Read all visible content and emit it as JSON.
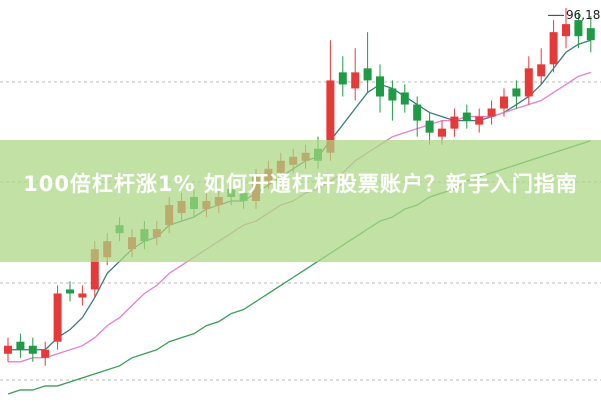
{
  "chart_data": {
    "type": "candlestick",
    "title": "100倍杠杆涨1% 如何开通杠杆股票账户？新手入门指南",
    "categories": [
      null,
      null,
      null,
      null,
      null,
      null,
      null,
      null,
      null,
      null,
      null,
      null,
      null,
      null,
      null,
      null,
      null,
      null,
      null,
      null,
      null,
      null,
      null,
      null,
      null,
      null,
      null,
      null,
      null,
      null,
      null,
      null,
      null,
      null,
      null,
      null,
      null,
      null,
      null,
      null,
      null,
      null,
      null,
      null,
      null,
      null,
      null,
      null
    ],
    "open": [
      12,
      15,
      14,
      11,
      15,
      28,
      26,
      28,
      36,
      44,
      38,
      43,
      41,
      44,
      47,
      51,
      48,
      49,
      53,
      52,
      50,
      55,
      57,
      59,
      60,
      63,
      62,
      82,
      78,
      83,
      81,
      78,
      77,
      74,
      70,
      66,
      68,
      72,
      69,
      71,
      73,
      78,
      76,
      81,
      84,
      91,
      95,
      93
    ],
    "high": [
      16,
      17,
      16,
      15,
      29,
      30,
      29,
      40,
      42,
      46,
      43,
      45,
      45,
      51,
      52,
      53,
      52,
      53,
      55,
      54,
      58,
      60,
      62,
      63,
      64,
      66,
      90,
      86,
      88,
      92,
      84,
      80,
      79,
      76,
      72,
      70,
      73,
      74,
      73,
      75,
      78,
      80,
      86,
      88,
      95,
      98,
      97,
      96
    ],
    "low": [
      10,
      11,
      10,
      9,
      13,
      25,
      24,
      26,
      34,
      40,
      36,
      38,
      39,
      42,
      45,
      46,
      46,
      47,
      49,
      48,
      48,
      53,
      55,
      57,
      58,
      58,
      60,
      76,
      75,
      77,
      72,
      70,
      72,
      66,
      64,
      64,
      66,
      68,
      67,
      69,
      71,
      73,
      74,
      79,
      82,
      88,
      88,
      87
    ],
    "close": [
      14,
      13,
      12,
      13,
      27,
      27,
      27,
      38,
      40,
      42,
      41,
      40,
      43,
      49,
      50,
      48,
      50,
      51,
      51,
      50,
      56,
      58,
      60,
      61,
      62,
      60,
      80,
      79,
      82,
      80,
      76,
      75,
      74,
      70,
      67,
      68,
      71,
      70,
      71,
      73,
      76,
      76,
      83,
      84,
      92,
      94,
      91,
      90
    ],
    "up_color": "#e63a3a",
    "down_color": "#1f9a45",
    "series": [
      {
        "color": "#3d7a7a",
        "values": [
          13,
          13,
          13,
          13,
          16,
          18,
          21,
          26,
          32,
          35,
          38,
          40,
          41,
          44,
          45,
          46,
          48,
          49,
          50,
          50,
          52,
          54,
          56,
          58,
          60,
          61,
          65,
          69,
          73,
          77,
          79,
          78,
          76,
          74,
          72,
          71,
          70,
          70,
          70,
          71,
          72,
          74,
          76,
          79,
          83,
          87,
          89,
          90
        ]
      },
      {
        "color": "#e87fd0",
        "values": [
          10,
          10,
          11,
          11,
          12,
          13,
          14,
          16,
          19,
          21,
          24,
          27,
          29,
          32,
          34,
          36,
          38,
          40,
          42,
          44,
          45,
          47,
          49,
          50,
          52,
          53,
          55,
          57,
          60,
          62,
          64,
          66,
          67,
          68,
          69,
          70,
          70,
          71,
          71,
          71,
          72,
          73,
          74,
          75,
          77,
          79,
          81,
          82
        ]
      },
      {
        "color": "#3aa055",
        "values": [
          2,
          3,
          3,
          4,
          4,
          5,
          6,
          7,
          8,
          9,
          11,
          12,
          13,
          15,
          16,
          17,
          19,
          20,
          22,
          23,
          25,
          27,
          29,
          31,
          33,
          35,
          37,
          39,
          41,
          43,
          45,
          46,
          48,
          49,
          51,
          52,
          53,
          55,
          56,
          57,
          58,
          59,
          60,
          61,
          62,
          63,
          64,
          65
        ]
      }
    ],
    "ylim": [
      0,
      100
    ],
    "price_marker": {
      "value": 96.18,
      "label": "96,18"
    }
  }
}
